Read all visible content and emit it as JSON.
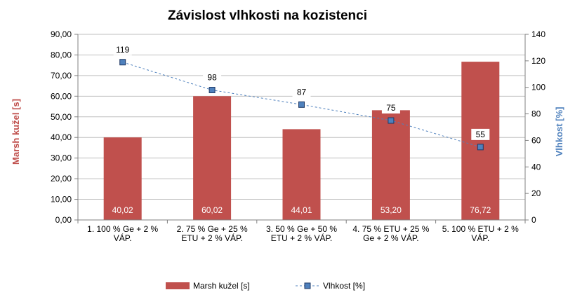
{
  "colors": {
    "bar": "#C0504D",
    "line": "#4F81BD",
    "marker_fill": "#4F81BD",
    "marker_stroke": "#1F3864",
    "grid": "#BFBFBF",
    "axis": "#808080",
    "left_title": "#C0504D",
    "right_title": "#4F81BD"
  },
  "chart_data": {
    "type": "bar",
    "title": "Závislost vlhkosti na kozistenci",
    "categories": [
      [
        "1. 100 % Ge + 2 %",
        "VÁP."
      ],
      [
        "2. 75 % Ge + 25 %",
        "ETU + 2 % VÁP."
      ],
      [
        "3. 50 % Ge + 50 %",
        "ETU + 2 % VÁP."
      ],
      [
        "4. 75 % ETU + 25 %",
        "Ge + 2 % VÁP."
      ],
      [
        "5. 100 % ETU + 2 %",
        "VÁP."
      ]
    ],
    "series": [
      {
        "name": "Marsh kužel [s]",
        "type": "bar",
        "axis": "left",
        "values": [
          40.02,
          60.02,
          44.01,
          53.2,
          76.72
        ],
        "labels": [
          "40,02",
          "60,02",
          "44,01",
          "53,20",
          "76,72"
        ]
      },
      {
        "name": "Vlhkost [%]",
        "type": "line",
        "axis": "right",
        "values": [
          119,
          98,
          87,
          75,
          55
        ],
        "labels": [
          "119",
          "98",
          "87",
          "75",
          "55"
        ]
      }
    ],
    "left_axis": {
      "label": "Marsh kužel [s]",
      "ylim": [
        0,
        90
      ],
      "ticks": [
        0,
        10,
        20,
        30,
        40,
        50,
        60,
        70,
        80,
        90
      ],
      "tick_labels": [
        "0,00",
        "10,00",
        "20,00",
        "30,00",
        "40,00",
        "50,00",
        "60,00",
        "70,00",
        "80,00",
        "90,00"
      ]
    },
    "right_axis": {
      "label": "Vlhkost [%]",
      "ylim": [
        0,
        140
      ],
      "ticks": [
        0,
        20,
        40,
        60,
        80,
        100,
        120,
        140
      ],
      "tick_labels": [
        "0",
        "20",
        "40",
        "60",
        "80",
        "100",
        "120",
        "140"
      ]
    },
    "grid": true,
    "legend_position": "bottom"
  }
}
